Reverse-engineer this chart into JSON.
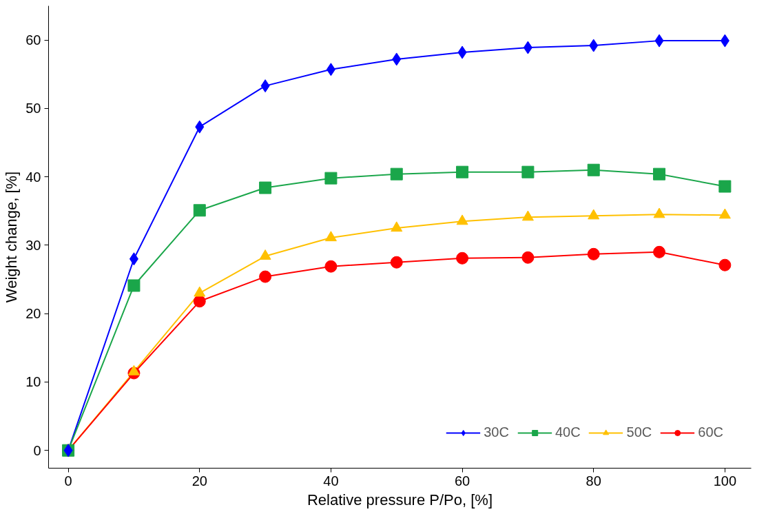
{
  "chart_data": {
    "type": "line",
    "xlabel": "Relative pressure P/Po, [%]",
    "ylabel": "Weight change, [%]",
    "x": [
      0,
      10,
      20,
      30,
      40,
      50,
      60,
      70,
      80,
      90,
      100
    ],
    "series": [
      {
        "name": "30C",
        "color": "#0000ff",
        "marker": "diamond",
        "values": [
          0,
          28.0,
          47.3,
          53.3,
          55.7,
          57.2,
          58.2,
          58.9,
          59.2,
          59.9,
          59.9
        ]
      },
      {
        "name": "40C",
        "color": "#1aa64a",
        "marker": "square",
        "values": [
          0,
          24.1,
          35.1,
          38.4,
          39.8,
          40.4,
          40.7,
          40.7,
          41.0,
          40.4,
          38.6
        ]
      },
      {
        "name": "50C",
        "color": "#ffc000",
        "marker": "triangle",
        "values": [
          0,
          11.5,
          23.0,
          28.4,
          31.1,
          32.5,
          33.5,
          34.1,
          34.3,
          34.5,
          34.4
        ]
      },
      {
        "name": "60C",
        "color": "#ff0000",
        "marker": "circle",
        "values": [
          0,
          11.3,
          21.8,
          25.4,
          26.9,
          27.5,
          28.1,
          28.2,
          28.7,
          29.0,
          27.1
        ]
      }
    ],
    "xlim": [
      -3,
      104
    ],
    "ylim": [
      -2.6,
      65
    ],
    "xticks": [
      0,
      20,
      40,
      60,
      80,
      100
    ],
    "yticks": [
      0,
      10,
      20,
      30,
      40,
      50,
      60
    ],
    "grid": false,
    "legend": "bottom right",
    "line_style": "solid"
  }
}
